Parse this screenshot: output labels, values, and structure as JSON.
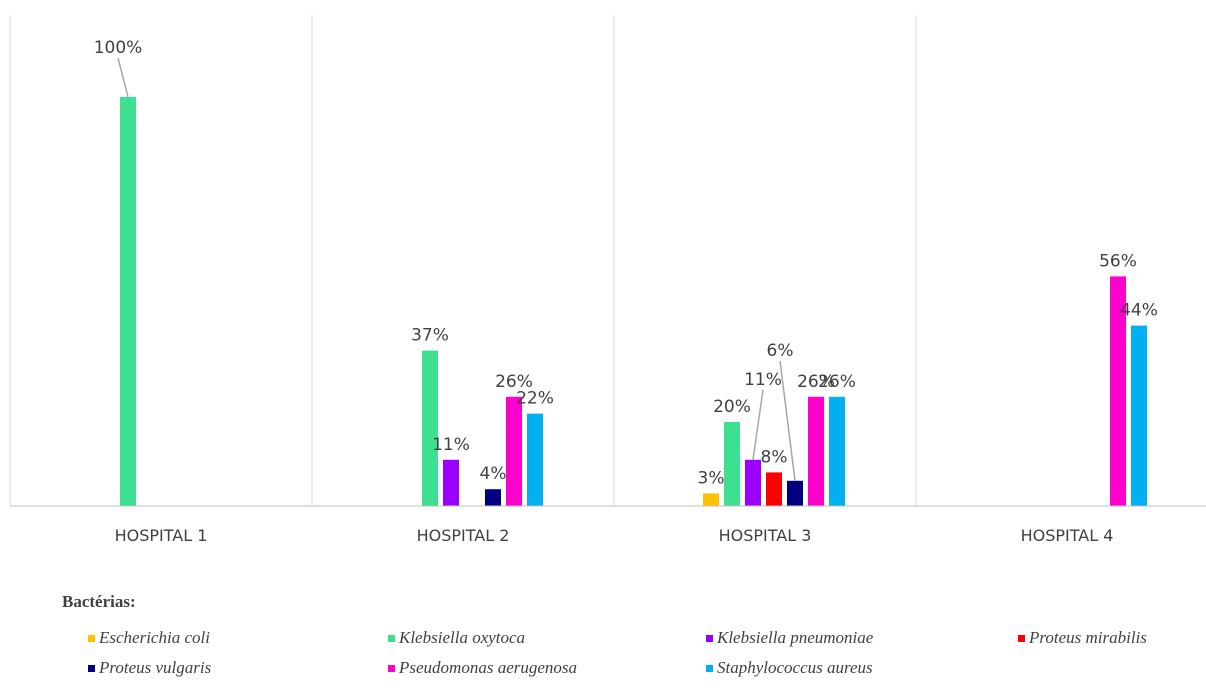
{
  "chart_data": {
    "type": "bar",
    "categories": [
      "HOSPITAL 1",
      "HOSPITAL 2",
      "HOSPITAL 3",
      "HOSPITAL 4"
    ],
    "series": [
      {
        "name": "Escherichia coli",
        "color": "#FFC000",
        "values": [
          0,
          0,
          3,
          0
        ],
        "labels": [
          "",
          "",
          "3%",
          ""
        ]
      },
      {
        "name": "Klebsiella oxytoca",
        "color": "#3DE091",
        "values": [
          100,
          37,
          20,
          0
        ],
        "labels": [
          "100%",
          "37%",
          "20%",
          ""
        ]
      },
      {
        "name": "Klebsiella pneumoniae",
        "color": "#9B00FF",
        "values": [
          0,
          11,
          11,
          0
        ],
        "labels": [
          "",
          "11%",
          "11%",
          ""
        ]
      },
      {
        "name": "Proteus mirabilis",
        "color": "#FF0000",
        "values": [
          0,
          0,
          8,
          0
        ],
        "labels": [
          "",
          "",
          "8%",
          ""
        ]
      },
      {
        "name": "Proteus vulgaris",
        "color": "#000080",
        "values": [
          0,
          4,
          6,
          0
        ],
        "labels": [
          "",
          "4%",
          "6%",
          ""
        ]
      },
      {
        "name": "Pseudomonas aerugenosa",
        "color": "#FF00CC",
        "values": [
          0,
          26,
          26,
          56
        ],
        "labels": [
          "",
          "26%",
          "26%",
          "56%"
        ]
      },
      {
        "name": "Staphylococcus aureus",
        "color": "#00B0F0",
        "values": [
          0,
          22,
          26,
          44
        ],
        "labels": [
          "",
          "22%",
          "26%",
          "44%"
        ]
      }
    ],
    "grid": "vertical separators between categories",
    "legend_placement": "bottom"
  },
  "legend": {
    "title": "Bactérias:"
  }
}
